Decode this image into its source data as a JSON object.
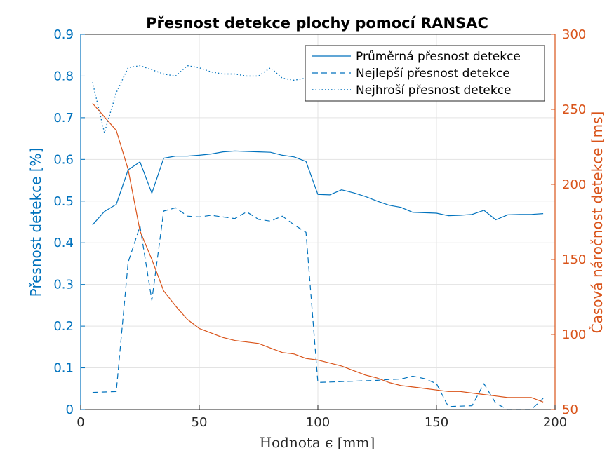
{
  "chart_data": {
    "type": "line",
    "title": "Přesnost detekce plochy pomocí RANSAC",
    "xlabel": "Hodnota ϵ [mm]",
    "ylabel_left": "Přesnost detekce [%]",
    "ylabel_right": "Časová náročnost detekce [ms]",
    "xlim": [
      0,
      200
    ],
    "ylim_left": [
      0,
      0.9
    ],
    "ylim_right": [
      50,
      300
    ],
    "x_ticks": [
      "0",
      "50",
      "100",
      "150",
      "200"
    ],
    "y_left_ticks": [
      "0",
      "0.1",
      "0.2",
      "0.3",
      "0.4",
      "0.5",
      "0.6",
      "0.7",
      "0.8",
      "0.9"
    ],
    "y_right_ticks": [
      "50",
      "100",
      "150",
      "200",
      "250",
      "300"
    ],
    "grid": true,
    "legend_position": "top-right",
    "colors": {
      "left_axis": "#0072BD",
      "right_axis": "#D95319"
    },
    "x": [
      5,
      10,
      15,
      20,
      25,
      30,
      35,
      40,
      45,
      50,
      55,
      60,
      65,
      70,
      75,
      80,
      85,
      90,
      95,
      100,
      105,
      110,
      115,
      120,
      125,
      130,
      135,
      140,
      145,
      150,
      155,
      160,
      165,
      170,
      175,
      180,
      185,
      190,
      195
    ],
    "series": [
      {
        "name": "Průměrná přesnost detekce",
        "axis": "left",
        "style": "solid",
        "values": [
          0.443,
          0.475,
          0.492,
          0.575,
          0.594,
          0.519,
          0.603,
          0.608,
          0.608,
          0.61,
          0.613,
          0.618,
          0.62,
          0.619,
          0.618,
          0.617,
          0.61,
          0.606,
          0.595,
          0.516,
          0.515,
          0.527,
          0.52,
          0.511,
          0.5,
          0.49,
          0.485,
          0.473,
          0.472,
          0.471,
          0.465,
          0.466,
          0.468,
          0.478,
          0.455,
          0.467,
          0.468,
          0.468,
          0.47
        ]
      },
      {
        "name": "Nejlepší přesnost detekce",
        "axis": "left",
        "style": "dashed",
        "values": [
          0.041,
          0.042,
          0.043,
          0.353,
          0.44,
          0.262,
          0.476,
          0.484,
          0.464,
          0.462,
          0.466,
          0.462,
          0.458,
          0.474,
          0.456,
          0.452,
          0.464,
          0.443,
          0.425,
          0.065,
          0.066,
          0.067,
          0.068,
          0.069,
          0.07,
          0.072,
          0.073,
          0.08,
          0.074,
          0.062,
          0.007,
          0.008,
          0.009,
          0.062,
          0.015,
          0.0,
          0.0,
          0.0,
          0.027
        ]
      },
      {
        "name": "Nejhroší přesnost detekce",
        "axis": "left",
        "style": "dotted",
        "values": [
          0.785,
          0.664,
          0.76,
          0.82,
          0.825,
          0.815,
          0.805,
          0.8,
          0.825,
          0.82,
          0.81,
          0.805,
          0.805,
          0.8,
          0.8,
          0.82,
          0.795,
          0.79,
          0.795,
          0.79,
          0.79,
          0.79,
          0.79,
          0.79,
          0.79,
          0.79,
          0.79,
          0.79,
          0.79,
          0.79,
          0.79,
          0.79,
          0.79,
          0.79,
          0.79,
          0.79,
          0.79,
          0.79,
          0.79
        ]
      },
      {
        "name": "",
        "axis": "right",
        "style": "solid",
        "values": [
          254,
          245,
          236,
          210,
          169,
          150,
          129,
          119,
          110,
          104,
          101,
          98,
          96,
          95,
          94,
          91,
          88,
          87,
          84,
          83,
          81,
          79,
          76,
          73,
          71,
          68,
          66,
          65,
          64,
          63,
          62,
          62,
          61,
          60,
          59,
          58,
          58,
          58,
          55
        ]
      }
    ]
  }
}
